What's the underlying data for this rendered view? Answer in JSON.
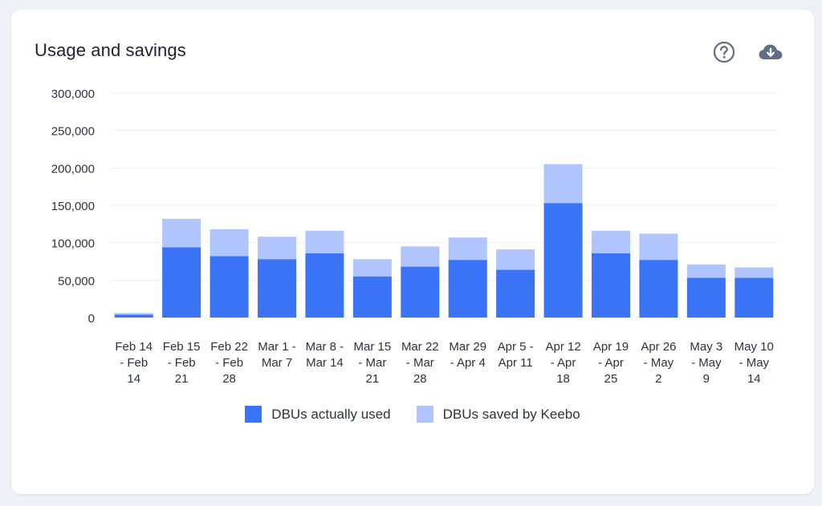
{
  "card": {
    "title": "Usage and savings"
  },
  "icons": {
    "help": "help-circle-icon",
    "download": "cloud-download-icon"
  },
  "colors": {
    "used": "#3a73f5",
    "saved": "#afc5fc",
    "grid": "#eef1f5",
    "text": "#2a3340"
  },
  "chart_data": {
    "type": "bar",
    "stacked": true,
    "categories": [
      [
        "Feb 14",
        "- Feb",
        "14"
      ],
      [
        "Feb 15",
        "- Feb",
        "21"
      ],
      [
        "Feb 22",
        "- Feb",
        "28"
      ],
      [
        "Mar 1 -",
        "Mar 7"
      ],
      [
        "Mar 8 -",
        "Mar 14"
      ],
      [
        "Mar 15",
        "- Mar",
        "21"
      ],
      [
        "Mar 22",
        "- Mar",
        "28"
      ],
      [
        "Mar 29",
        "- Apr 4"
      ],
      [
        "Apr 5 -",
        "Apr 11"
      ],
      [
        "Apr 12",
        "- Apr",
        "18"
      ],
      [
        "Apr 19",
        "- Apr",
        "25"
      ],
      [
        "Apr 26",
        "- May",
        "2"
      ],
      [
        "May 3",
        "- May",
        "9"
      ],
      [
        "May 10",
        "- May",
        "14"
      ]
    ],
    "series": [
      {
        "name": "DBUs actually used",
        "values": [
          4000,
          94000,
          82000,
          78000,
          86000,
          55000,
          68000,
          77000,
          64000,
          153000,
          86000,
          77000,
          53000,
          53000
        ]
      },
      {
        "name": "DBUs saved by Keebo",
        "values": [
          2000,
          38000,
          36000,
          30000,
          30000,
          23000,
          27000,
          30000,
          27000,
          52000,
          30000,
          35000,
          18000,
          14000
        ]
      }
    ],
    "yticks": [
      "0",
      "50,000",
      "100,000",
      "150,000",
      "200,000",
      "250,000",
      "300,000"
    ],
    "ylim": [
      0,
      300000
    ],
    "grid": true,
    "legend": "bottom"
  }
}
